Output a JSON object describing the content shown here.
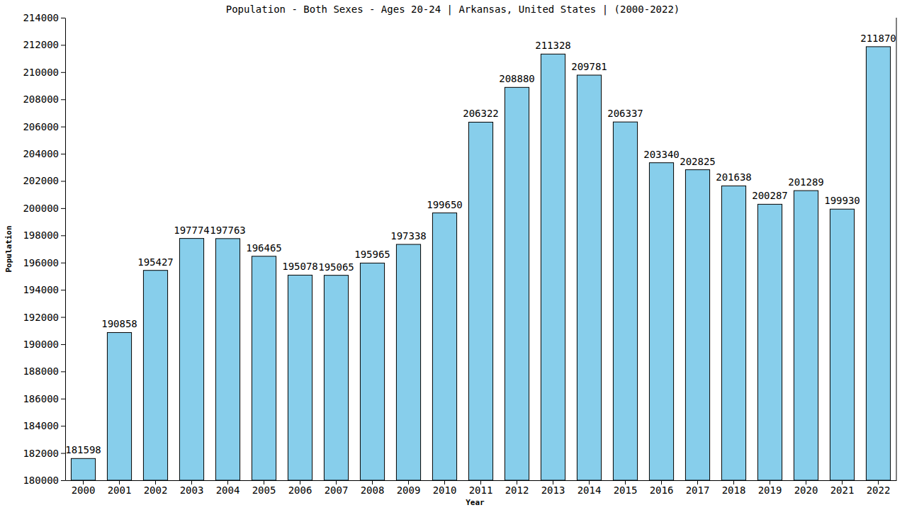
{
  "chart_data": {
    "type": "bar",
    "title": "Population - Both Sexes - Ages 20-24 | Arkansas, United States |  (2000-2022)",
    "x_label": "Year",
    "y_label": "Population",
    "categories": [
      "2000",
      "2001",
      "2002",
      "2003",
      "2004",
      "2005",
      "2006",
      "2007",
      "2008",
      "2009",
      "2010",
      "2011",
      "2012",
      "2013",
      "2014",
      "2015",
      "2016",
      "2017",
      "2018",
      "2019",
      "2020",
      "2021",
      "2022"
    ],
    "values": [
      181598,
      190858,
      195427,
      197774,
      197763,
      196465,
      195078,
      195065,
      195965,
      197338,
      199650,
      206322,
      208880,
      211328,
      209781,
      206337,
      203340,
      202825,
      201638,
      200287,
      201289,
      199930,
      211870
    ],
    "color": "#87ceeb",
    "ylim": [
      180000,
      214000
    ],
    "yticks": [
      180000,
      182000,
      184000,
      186000,
      188000,
      190000,
      192000,
      194000,
      196000,
      198000,
      200000,
      202000,
      204000,
      206000,
      208000,
      210000,
      212000,
      214000
    ],
    "grid": false,
    "data_labels": true
  }
}
